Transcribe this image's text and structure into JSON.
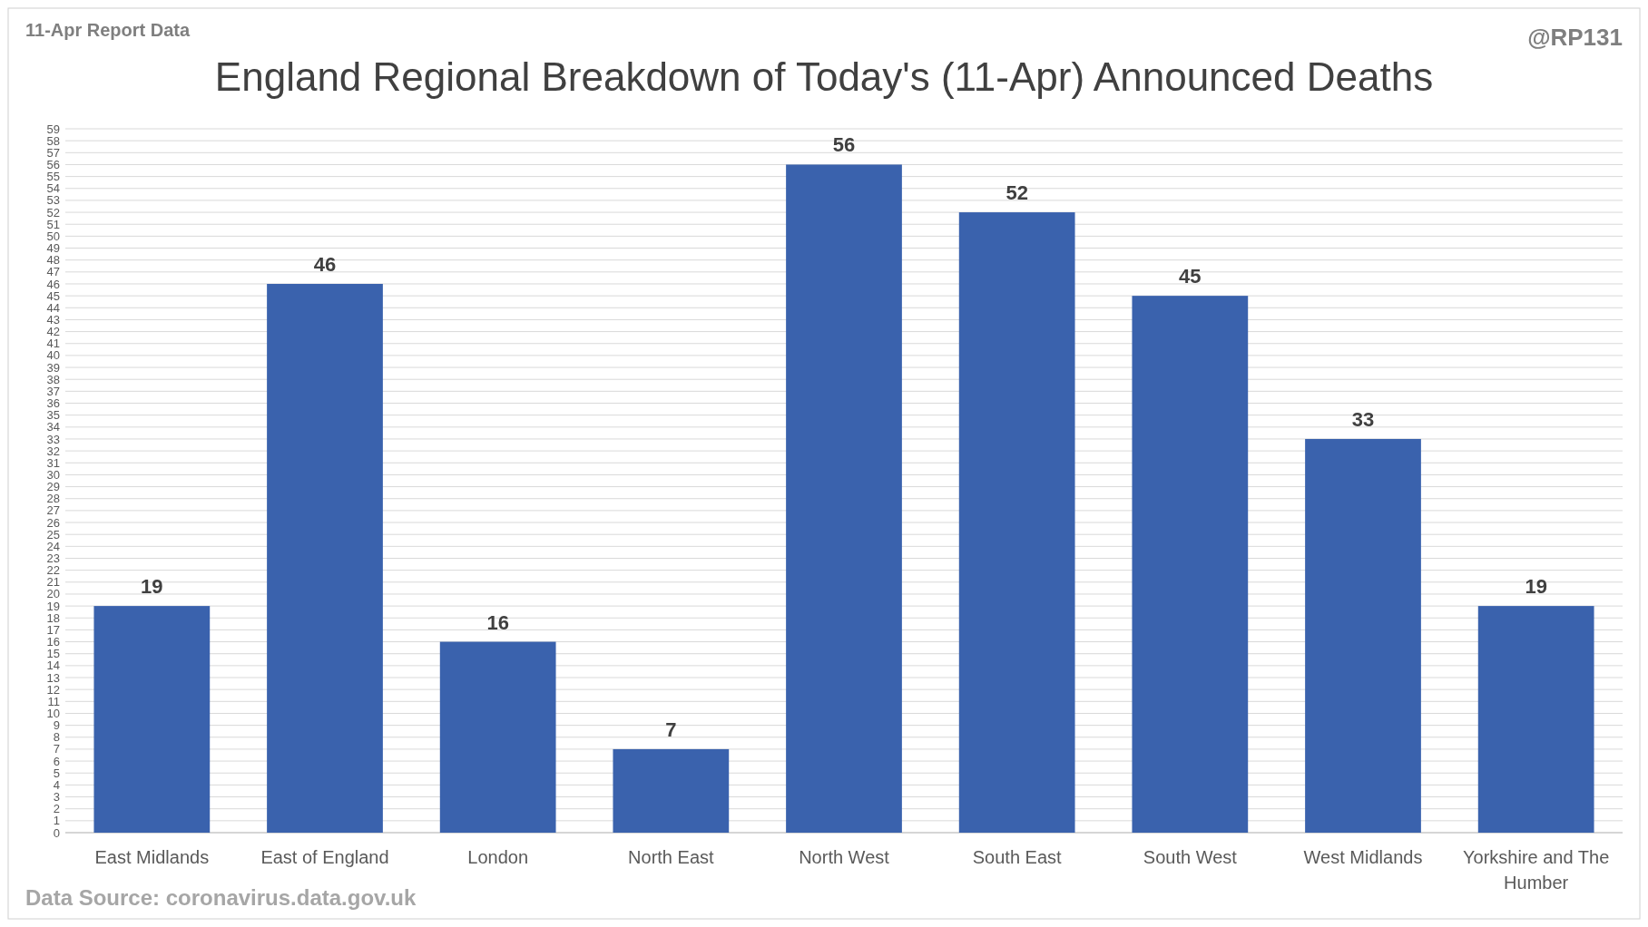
{
  "chart_data": {
    "type": "bar",
    "title": "England Regional Breakdown of Today's (11-Apr) Announced Deaths",
    "annotations": [
      "11-Apr Report Data",
      "@RP131",
      "Data Source: coronavirus.data.gov.uk"
    ],
    "categories": [
      "East Midlands",
      "East of England",
      "London",
      "North East",
      "North West",
      "South East",
      "South West",
      "West Midlands",
      "Yorkshire and The Humber"
    ],
    "values": [
      19,
      46,
      16,
      7,
      56,
      52,
      45,
      33,
      19
    ],
    "color": "#3a62ad",
    "ylim": [
      0,
      59
    ],
    "yticks": [
      0,
      1,
      2,
      3,
      4,
      5,
      6,
      7,
      8,
      9,
      10,
      11,
      12,
      13,
      14,
      15,
      16,
      17,
      18,
      19,
      20,
      21,
      22,
      23,
      24,
      25,
      26,
      27,
      28,
      29,
      30,
      31,
      32,
      33,
      34,
      35,
      36,
      37,
      38,
      39,
      40,
      41,
      42,
      43,
      44,
      45,
      46,
      47,
      48,
      49,
      50,
      51,
      52,
      53,
      54,
      55,
      56,
      57,
      58,
      59
    ],
    "grid": true,
    "data_labels": true
  }
}
